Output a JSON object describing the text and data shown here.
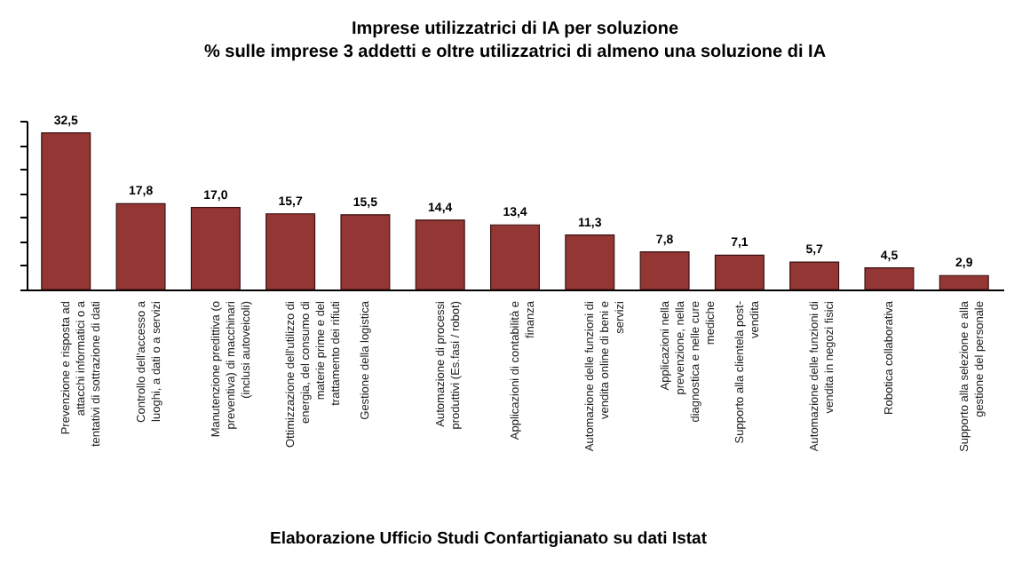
{
  "chart_data": {
    "type": "bar",
    "title": "Imprese utilizzatrici di IA per soluzione",
    "subtitle": "% sulle imprese 3 addetti e oltre utilizzatrici di almeno una soluzione di IA",
    "categories": [
      "Prevenzione e risposta ad\nattacchi informatici o a\ntentativi di sottrazione di dati",
      "Controllo dell'accesso a\nluoghi, a dati o a servizi",
      "Manutenzione predittiva (o\npreventiva) di macchinari\n(inclusi autoveicoli)",
      "Ottimizzazione dell'utilizzo di\nenergia, del consumo di\nmaterie prime e del\ntrattamento dei rifiuti",
      "Gestione della logistica",
      "Automazione di processi\nproduttivi (Es.fasi / robot)",
      "Applicazioni di contabilità e\nfinanza",
      "Automazione delle funzioni di\nvendita online di beni e\nservizi",
      "Applicazioni nella\nprevenzione, nella\ndiagnostica e nelle cure\nmediche",
      "Supporto alla clientela post-\nvendita",
      "Automazione delle funzioni di\nvendita in negozi fisici",
      "Robotica collaborativa",
      "Supporto alla selezione e alla\ngestione del personale"
    ],
    "values": [
      32.5,
      17.8,
      17.0,
      15.7,
      15.5,
      14.4,
      13.4,
      11.3,
      7.8,
      7.1,
      5.7,
      4.5,
      2.9
    ],
    "value_labels": [
      "32,5",
      "17,8",
      "17,0",
      "15,7",
      "15,5",
      "14,4",
      "13,4",
      "11,3",
      "7,8",
      "7,1",
      "5,7",
      "4,5",
      "2,9"
    ],
    "color": "#943634",
    "ylim": [
      0,
      35
    ],
    "tick_labels": "x",
    "grid": false,
    "legend": false,
    "annotations": [
      "Elaborazione Ufficio Studi Confartigianato su dati Istat"
    ]
  }
}
